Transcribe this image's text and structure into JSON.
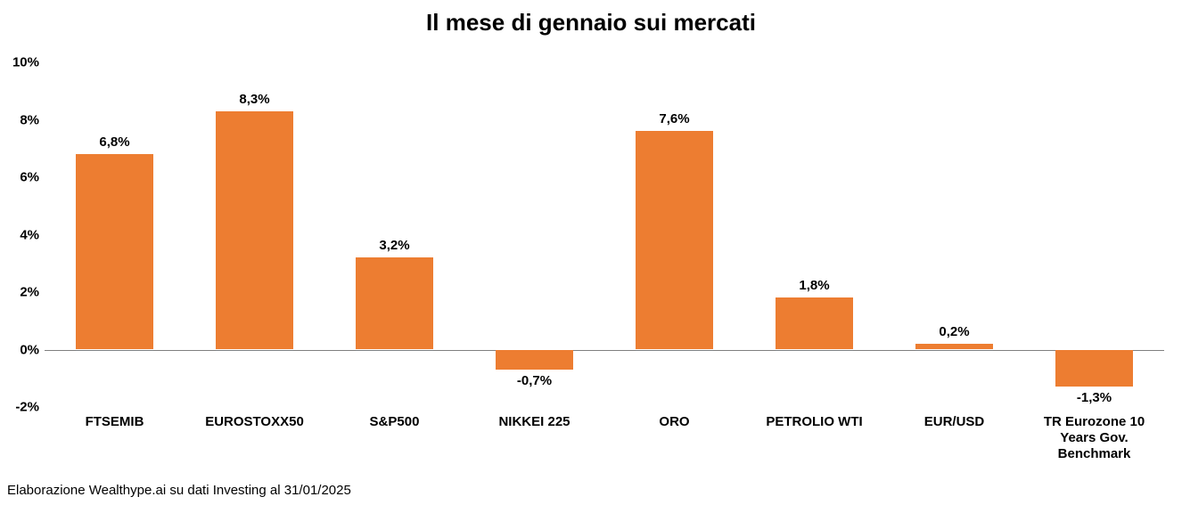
{
  "chart": {
    "type": "bar",
    "title": "Il mese di gennaio sui mercati",
    "title_fontsize": 26,
    "title_fontweight": "bold",
    "title_color": "#000000",
    "background_color": "#ffffff",
    "bar_color": "#ed7d31",
    "zero_line_color": "#808080",
    "axis_label_color": "#000000",
    "axis_label_fontsize": 15,
    "axis_label_fontweight": "bold",
    "value_label_fontsize": 15,
    "value_label_fontweight": "bold",
    "value_label_color": "#000000",
    "x_label_fontsize": 15,
    "x_label_fontweight": "bold",
    "ylim_min": -2,
    "ylim_max": 10,
    "ytick_step": 2,
    "yticks": [
      -2,
      0,
      2,
      4,
      6,
      8,
      10
    ],
    "ytick_labels": [
      "-2%",
      "0%",
      "2%",
      "4%",
      "6%",
      "8%",
      "10%"
    ],
    "bar_width_ratio": 0.55,
    "categories": [
      "FTSEMIB",
      "EUROSTOXX50",
      "S&P500",
      "NIKKEI 225",
      "ORO",
      "PETROLIO WTI",
      "EUR/USD",
      "TR Eurozone 10 Years Gov. Benchmark"
    ],
    "values": [
      6.8,
      8.3,
      3.2,
      -0.7,
      7.6,
      1.8,
      0.2,
      -1.3
    ],
    "value_labels": [
      "6,8%",
      "8,3%",
      "3,2%",
      "-0,7%",
      "7,6%",
      "1,8%",
      "0,2%",
      "-1,3%"
    ],
    "source_note": "Elaborazione Wealthype.ai su dati Investing al 31/01/2025",
    "source_fontsize": 15,
    "source_color": "#000000"
  }
}
